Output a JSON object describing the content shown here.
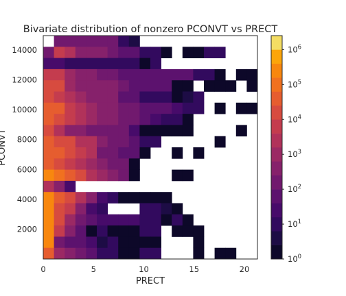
{
  "chart_data": {
    "type": "heatmap",
    "title": "Bivariate distribution of nonzero PCONVT vs PRECT",
    "xlabel": "PRECT",
    "ylabel": "PCONVT",
    "xlim": [
      0,
      21.3
    ],
    "ylim": [
      0,
      14960
    ],
    "x_ticks": [
      "0",
      "5",
      "10",
      "15",
      "20"
    ],
    "y_ticks": [
      "2000",
      "4000",
      "6000",
      "8000",
      "10000",
      "12000",
      "14000"
    ],
    "bins": {
      "nx": 20,
      "ny": 20,
      "x_min": 0,
      "x_max": 21.3,
      "y_min": 0,
      "y_max": 14960
    },
    "counts_log10_by_row_top_to_bottom": [
      [
        null,
        2.4,
        2.4,
        2.4,
        2.3,
        2.0,
        2.0,
        1.2,
        0.4,
        null,
        null,
        null,
        null,
        null,
        null,
        null,
        null,
        null,
        null,
        null
      ],
      [
        2.1,
        3.7,
        3.4,
        2.8,
        2.6,
        2.6,
        2.2,
        1.8,
        1.9,
        1.2,
        1.2,
        0.0,
        null,
        0.0,
        0.0,
        1.0,
        1.0,
        null,
        null,
        null
      ],
      [
        1.3,
        1.3,
        1.2,
        0.9,
        0.9,
        0.8,
        0.9,
        0.8,
        0.8,
        0.0,
        0.8,
        null,
        null,
        null,
        null,
        null,
        null,
        null,
        null,
        null
      ],
      [
        3.9,
        3.7,
        3.0,
        2.8,
        2.6,
        2.4,
        2.3,
        1.9,
        1.7,
        1.8,
        1.8,
        1.8,
        1.7,
        1.7,
        0.9,
        1.1,
        0.0,
        null,
        0.0,
        0.0
      ],
      [
        4.2,
        4.0,
        3.1,
        2.8,
        2.7,
        2.5,
        2.5,
        2.0,
        1.6,
        1.7,
        1.6,
        1.6,
        0.3,
        0.3,
        null,
        0.0,
        0.0,
        0.0,
        null,
        0.0
      ],
      [
        4.3,
        3.9,
        3.2,
        2.9,
        2.6,
        2.6,
        2.5,
        1.9,
        1.6,
        1.0,
        1.0,
        1.0,
        0.0,
        0.4,
        1.1,
        null,
        null,
        null,
        null,
        null
      ],
      [
        4.7,
        4.4,
        3.9,
        3.2,
        3.0,
        2.6,
        2.6,
        2.3,
        2.2,
        1.8,
        1.6,
        1.8,
        1.4,
        0.9,
        1.2,
        null,
        0.0,
        null,
        0.0,
        0.0
      ],
      [
        4.6,
        4.3,
        3.8,
        3.2,
        3.1,
        2.6,
        2.6,
        2.4,
        2.2,
        1.7,
        1.4,
        1.2,
        1.0,
        0.0,
        null,
        null,
        null,
        null,
        null,
        null
      ],
      [
        4.2,
        3.3,
        2.8,
        2.8,
        2.4,
        2.2,
        2.2,
        2.0,
        1.5,
        0.0,
        0.0,
        0.0,
        0.0,
        0.0,
        null,
        null,
        null,
        null,
        0.0,
        null
      ],
      [
        4.6,
        4.3,
        4.0,
        3.4,
        3.3,
        2.7,
        2.3,
        2.0,
        1.6,
        1.0,
        1.2,
        null,
        null,
        null,
        null,
        null,
        0.0,
        null,
        null,
        null
      ],
      [
        4.7,
        4.4,
        4.1,
        3.6,
        3.4,
        2.4,
        2.1,
        1.7,
        1.6,
        0.3,
        null,
        null,
        0.0,
        null,
        0.0,
        null,
        null,
        null,
        null,
        null
      ],
      [
        4.6,
        4.3,
        3.8,
        3.3,
        3.0,
        2.5,
        2.4,
        2.1,
        0.0,
        null,
        null,
        null,
        null,
        null,
        null,
        null,
        null,
        null,
        null,
        null
      ],
      [
        5.6,
        5.0,
        4.5,
        4.0,
        3.5,
        3.1,
        2.6,
        2.1,
        0.2,
        null,
        null,
        null,
        0.0,
        0.0,
        null,
        null,
        null,
        null,
        null,
        null
      ],
      [
        3.3,
        2.5,
        1.4,
        null,
        null,
        null,
        null,
        null,
        null,
        null,
        null,
        null,
        null,
        null,
        null,
        null,
        null,
        null,
        null,
        null
      ],
      [
        5.6,
        4.7,
        4.3,
        3.5,
        2.6,
        1.4,
        1.0,
        0.0,
        0.0,
        0.0,
        0.0,
        0.0,
        null,
        null,
        null,
        null,
        null,
        null,
        null,
        null
      ],
      [
        5.6,
        4.3,
        3.6,
        2.6,
        1.4,
        1.2,
        null,
        null,
        null,
        1.0,
        1.0,
        0.4,
        0.0,
        null,
        null,
        null,
        null,
        null,
        null,
        null
      ],
      [
        5.6,
        4.2,
        3.1,
        2.3,
        1.8,
        1.3,
        1.3,
        1.3,
        1.3,
        0.9,
        1.0,
        0.0,
        1.0,
        0.0,
        null,
        null,
        null,
        null,
        null,
        null
      ],
      [
        5.4,
        3.6,
        2.8,
        1.8,
        0.0,
        0.8,
        0.0,
        0.0,
        0.0,
        1.0,
        1.0,
        null,
        0.0,
        0.0,
        0.0,
        null,
        null,
        null,
        null,
        null
      ],
      [
        5.5,
        2.4,
        1.8,
        1.7,
        1.3,
        0.7,
        0.8,
        0.0,
        0.0,
        0.0,
        0.0,
        null,
        null,
        null,
        0.0,
        null,
        null,
        null,
        null,
        null
      ],
      [
        4.5,
        3.1,
        2.7,
        2.4,
        1.8,
        1.2,
        0.8,
        0.0,
        0.0,
        1.0,
        1.0,
        null,
        null,
        null,
        0.0,
        null,
        0.0,
        0.0,
        null,
        null
      ]
    ],
    "colorbar": {
      "scale": "log",
      "min_log10": 0,
      "max_log10": 6.4,
      "tick_labels": [
        "10^0",
        "10^1",
        "10^2",
        "10^3",
        "10^4",
        "10^5",
        "10^6"
      ],
      "colormap": "inferno",
      "levels": 16
    },
    "grid": false,
    "legend": "none"
  }
}
